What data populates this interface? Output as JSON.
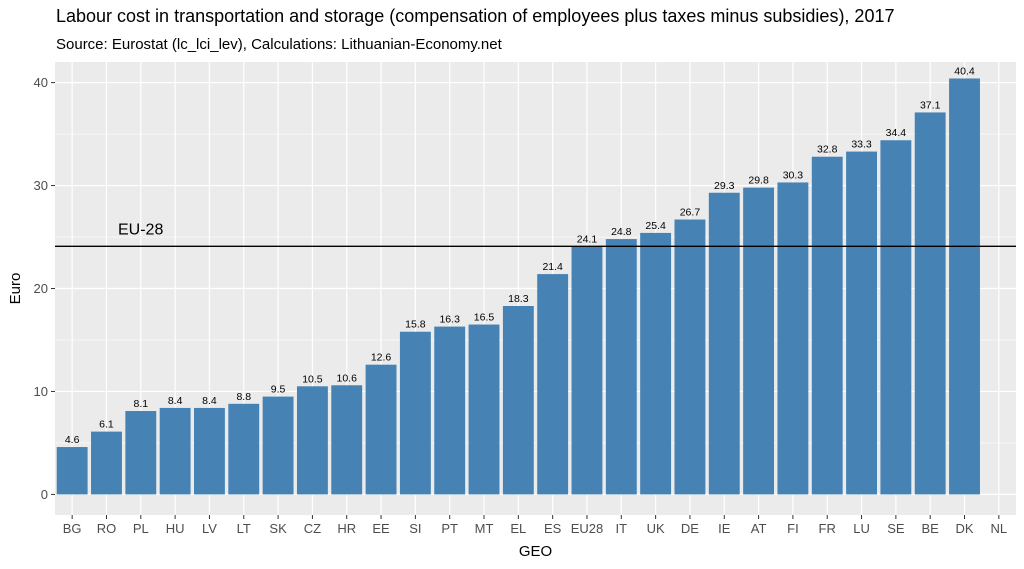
{
  "chart_data": {
    "type": "bar",
    "title": "Labour cost in transportation and storage (compensation of employees plus taxes minus subsidies), 2017",
    "subtitle": "Source: Eurostat (lc_lci_lev), Calculations: Lithuanian-Economy.net",
    "xlabel": "GEO",
    "ylabel": "Euro",
    "ylim": [
      -2,
      42
    ],
    "yticks": [
      0,
      10,
      20,
      30,
      40
    ],
    "grid": true,
    "categories": [
      "BG",
      "RO",
      "PL",
      "HU",
      "LV",
      "LT",
      "SK",
      "CZ",
      "HR",
      "EE",
      "SI",
      "PT",
      "MT",
      "EL",
      "ES",
      "EU28",
      "IT",
      "UK",
      "DE",
      "IE",
      "AT",
      "FI",
      "FR",
      "LU",
      "SE",
      "BE",
      "DK",
      "NL"
    ],
    "values": [
      4.6,
      6.1,
      8.1,
      8.4,
      8.4,
      8.8,
      9.5,
      10.5,
      10.6,
      12.6,
      15.8,
      16.3,
      16.5,
      18.3,
      21.4,
      24.1,
      24.8,
      25.4,
      26.7,
      29.3,
      29.8,
      30.3,
      32.8,
      33.3,
      34.4,
      37.1,
      40.4,
      null
    ],
    "reference_line": {
      "label": "EU-28",
      "value": 24.1
    },
    "colors": {
      "bar": "#4682b4",
      "panel": "#ebebeb",
      "grid": "#ffffff",
      "reference_line": "#000000"
    }
  }
}
